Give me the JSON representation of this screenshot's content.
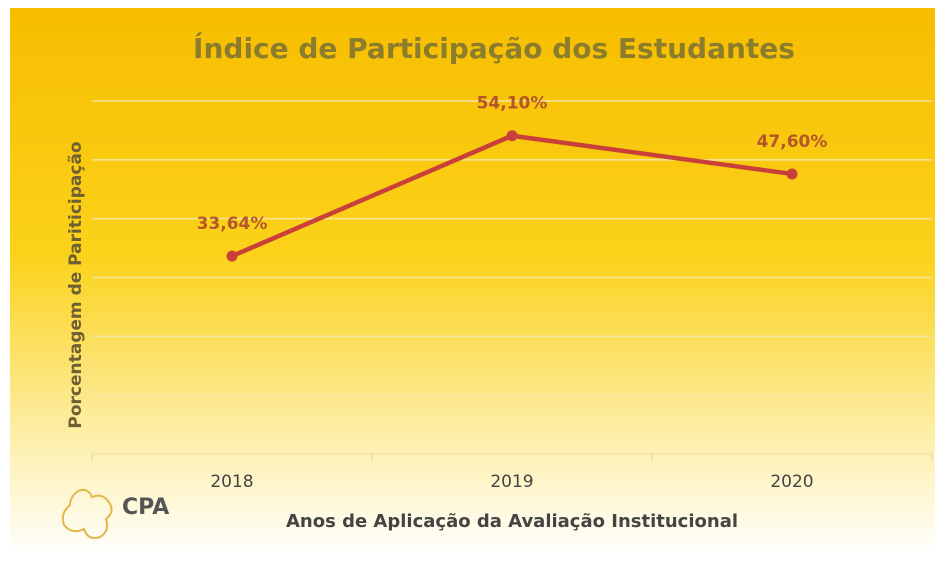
{
  "chart_data": {
    "type": "line",
    "title": "Índice de Participação dos Estudantes",
    "x_label": "Anos de Aplicação da Avaliação Institucional",
    "y_label": "Porcentagem de Pariticipação",
    "categories": [
      "2018",
      "2019",
      "2020"
    ],
    "series": [
      {
        "name": "Índice de Participação",
        "color": "#c9403a",
        "values": [
          33.64,
          54.1,
          47.6
        ],
        "value_labels": [
          "33,64%",
          "54,10%",
          "47,60%"
        ]
      }
    ],
    "ylim": [
      0,
      60
    ],
    "yticks": [
      0,
      10,
      20,
      30,
      40,
      50,
      60
    ],
    "grid": true
  },
  "logo": {
    "text": "CPA"
  }
}
